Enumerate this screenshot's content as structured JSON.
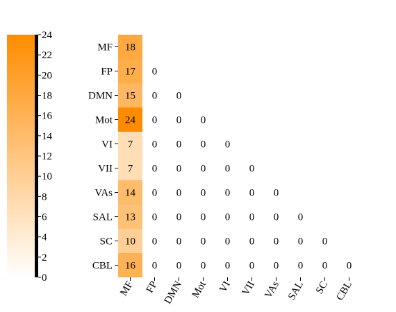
{
  "chart_data": {
    "type": "heatmap",
    "title": "",
    "xlabel": "",
    "ylabel": "",
    "rows": [
      "MF",
      "FP",
      "DMN",
      "Mot",
      "VI",
      "VII",
      "VAs",
      "SAL",
      "SC",
      "CBL"
    ],
    "cols": [
      "MF",
      "FP",
      "DMN",
      "Mot",
      "VI",
      "VII",
      "VAs",
      "SAL",
      "SC",
      "CBL"
    ],
    "matrix": [
      [
        18
      ],
      [
        17,
        0
      ],
      [
        15,
        0,
        0
      ],
      [
        24,
        0,
        0,
        0
      ],
      [
        7,
        0,
        0,
        0,
        0
      ],
      [
        7,
        0,
        0,
        0,
        0,
        0
      ],
      [
        14,
        0,
        0,
        0,
        0,
        0,
        0
      ],
      [
        13,
        0,
        0,
        0,
        0,
        0,
        0,
        0
      ],
      [
        10,
        0,
        0,
        0,
        0,
        0,
        0,
        0,
        0
      ],
      [
        16,
        0,
        0,
        0,
        0,
        0,
        0,
        0,
        0,
        0
      ]
    ],
    "lower_triangle_only": true,
    "colorbar": {
      "range": [
        0,
        24
      ],
      "ticks": [
        "0",
        "2",
        "4",
        "6",
        "8",
        "10",
        "12",
        "14",
        "16",
        "18",
        "20",
        "22",
        "24"
      ],
      "color_min": "#ffffff",
      "color_max": "#ff8c00",
      "position": "left"
    },
    "x_tick_rotation": -60
  }
}
